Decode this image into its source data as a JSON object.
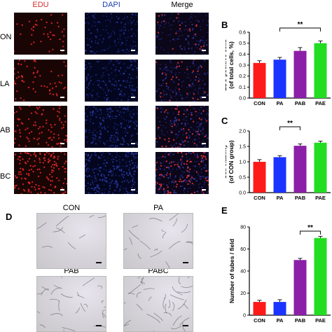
{
  "panel_a": {
    "columns": [
      {
        "label": "EDU",
        "color": "#d32f2f"
      },
      {
        "label": "DAPI",
        "color": "#1a3fb0"
      },
      {
        "label": "Merge",
        "color": "#000000"
      }
    ],
    "rows": [
      "ON",
      "LA",
      "AB",
      "BC"
    ]
  },
  "panel_d": {
    "letter": "D",
    "images": [
      "CON",
      "PA",
      "PAB",
      "PABC"
    ]
  },
  "chart_data": [
    {
      "type": "bar",
      "panel": "B",
      "categories": [
        "CON",
        "PA",
        "PAB",
        "PAE"
      ],
      "values": [
        0.32,
        0.35,
        0.43,
        0.5
      ],
      "errors": [
        0.02,
        0.02,
        0.03,
        0.02
      ],
      "colors": [
        "#ff1a1a",
        "#1a33ff",
        "#8b1fa8",
        "#22dd22"
      ],
      "ylabel": "EDU positive cells\n(of total cells, %)",
      "ylim": [
        0,
        0.6
      ],
      "yticks": [
        "0.0",
        "0.1",
        "0.2",
        "0.3",
        "0.4",
        "0.5",
        "0.6"
      ],
      "significance": {
        "from": 1,
        "to": 3,
        "label": "**"
      }
    },
    {
      "type": "bar",
      "panel": "C",
      "categories": [
        "CON",
        "PA",
        "PAB",
        "PAE"
      ],
      "values": [
        1.0,
        1.15,
        1.52,
        1.62
      ],
      "errors": [
        0.07,
        0.05,
        0.06,
        0.05
      ],
      "colors": [
        "#ff1a1a",
        "#1a33ff",
        "#8b1fa8",
        "#22dd22"
      ],
      "ylabel": "Cell viability\n(of CON group)",
      "ylim": [
        0,
        2.0
      ],
      "yticks": [
        "0.0",
        "0.5",
        "1.0",
        "1.5",
        "2.0"
      ],
      "significance": {
        "from": 1,
        "to": 2,
        "label": "**"
      }
    },
    {
      "type": "bar",
      "panel": "E",
      "categories": [
        "CON",
        "PA",
        "PAB",
        "PAE"
      ],
      "values": [
        12,
        12,
        50,
        70
      ],
      "errors": [
        1.5,
        2,
        1.5,
        1.5
      ],
      "colors": [
        "#ff1a1a",
        "#1a33ff",
        "#8b1fa8",
        "#22dd22"
      ],
      "ylabel": "Number of tubes / field",
      "ylim": [
        0,
        80
      ],
      "yticks": [
        "0",
        "20",
        "40",
        "60",
        "80"
      ],
      "significance": {
        "from": 2,
        "to": 3,
        "label": "**"
      }
    }
  ]
}
